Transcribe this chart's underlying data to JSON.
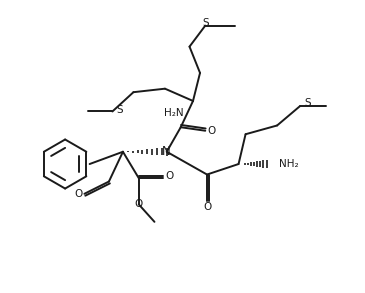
{
  "bg_color": "#ffffff",
  "line_color": "#1a1a1a",
  "line_width": 1.4,
  "figsize": [
    3.65,
    2.93
  ],
  "dpi": 100,
  "xlim": [
    0,
    10
  ],
  "ylim": [
    0,
    8
  ]
}
